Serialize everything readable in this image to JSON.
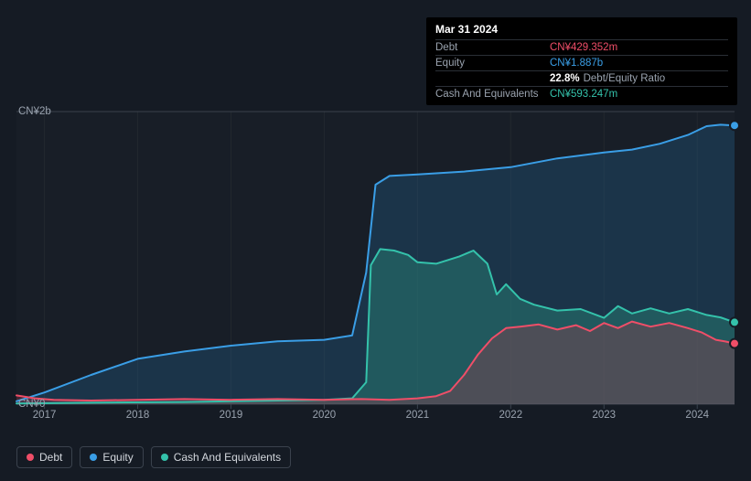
{
  "tooltip": {
    "date": "Mar 31 2024",
    "rows": [
      {
        "label": "Debt",
        "value": "CN¥429.352m",
        "cls": "debt"
      },
      {
        "label": "Equity",
        "value": "CN¥1.887b",
        "cls": "equity"
      },
      {
        "label": "",
        "value_strong": "22.8%",
        "value_label": "Debt/Equity Ratio",
        "cls": "ratio"
      },
      {
        "label": "Cash And Equivalents",
        "value": "CN¥593.247m",
        "cls": "cash"
      }
    ]
  },
  "chart": {
    "type": "area",
    "background_color": "#151b24",
    "plot_bg": "#181e27",
    "grid_color": "#22282f",
    "axis_color": "#3a424d",
    "label_color": "#9aa3af",
    "label_fontsize": 11.5,
    "y_axis": {
      "min": 0,
      "max": 2000,
      "ticks": [
        {
          "v": 0,
          "label": "CN¥0"
        },
        {
          "v": 2000,
          "label": "CN¥2b"
        }
      ]
    },
    "x_axis": {
      "min": 2016.7,
      "max": 2024.4,
      "ticks": [
        2017,
        2018,
        2019,
        2020,
        2021,
        2022,
        2023,
        2024
      ]
    },
    "series": {
      "equity": {
        "label": "Equity",
        "color": "#3a9ee6",
        "fill": "rgba(35,90,130,0.38)",
        "line_width": 2,
        "points": [
          [
            2016.7,
            20
          ],
          [
            2017.0,
            80
          ],
          [
            2017.5,
            200
          ],
          [
            2018.0,
            310
          ],
          [
            2018.5,
            360
          ],
          [
            2019.0,
            400
          ],
          [
            2019.5,
            430
          ],
          [
            2020.0,
            440
          ],
          [
            2020.3,
            470
          ],
          [
            2020.45,
            900
          ],
          [
            2020.55,
            1500
          ],
          [
            2020.7,
            1560
          ],
          [
            2021.0,
            1570
          ],
          [
            2021.5,
            1590
          ],
          [
            2022.0,
            1620
          ],
          [
            2022.5,
            1680
          ],
          [
            2023.0,
            1720
          ],
          [
            2023.3,
            1740
          ],
          [
            2023.6,
            1780
          ],
          [
            2023.9,
            1840
          ],
          [
            2024.1,
            1900
          ],
          [
            2024.25,
            1910
          ],
          [
            2024.4,
            1905
          ]
        ],
        "end_marker": true
      },
      "cash": {
        "label": "Cash And Equivalents",
        "color": "#34c2ab",
        "fill": "rgba(44,140,125,0.42)",
        "line_width": 2,
        "points": [
          [
            2016.7,
            5
          ],
          [
            2017.5,
            10
          ],
          [
            2018.5,
            15
          ],
          [
            2019.5,
            25
          ],
          [
            2020.0,
            30
          ],
          [
            2020.3,
            40
          ],
          [
            2020.45,
            150
          ],
          [
            2020.5,
            950
          ],
          [
            2020.6,
            1060
          ],
          [
            2020.75,
            1050
          ],
          [
            2020.9,
            1020
          ],
          [
            2021.0,
            970
          ],
          [
            2021.2,
            960
          ],
          [
            2021.45,
            1010
          ],
          [
            2021.6,
            1050
          ],
          [
            2021.75,
            960
          ],
          [
            2021.85,
            750
          ],
          [
            2021.95,
            820
          ],
          [
            2022.1,
            720
          ],
          [
            2022.25,
            680
          ],
          [
            2022.5,
            640
          ],
          [
            2022.75,
            650
          ],
          [
            2023.0,
            590
          ],
          [
            2023.15,
            670
          ],
          [
            2023.3,
            620
          ],
          [
            2023.5,
            655
          ],
          [
            2023.7,
            620
          ],
          [
            2023.9,
            650
          ],
          [
            2024.1,
            610
          ],
          [
            2024.25,
            593
          ],
          [
            2024.4,
            560
          ]
        ],
        "end_marker": true
      },
      "debt": {
        "label": "Debt",
        "color": "#ef4e68",
        "fill": "rgba(170,55,75,0.32)",
        "line_width": 2,
        "points": [
          [
            2016.7,
            60
          ],
          [
            2016.9,
            40
          ],
          [
            2017.1,
            30
          ],
          [
            2017.5,
            25
          ],
          [
            2018.0,
            30
          ],
          [
            2018.5,
            35
          ],
          [
            2019.0,
            30
          ],
          [
            2019.5,
            35
          ],
          [
            2020.0,
            30
          ],
          [
            2020.4,
            35
          ],
          [
            2020.7,
            30
          ],
          [
            2021.0,
            40
          ],
          [
            2021.2,
            55
          ],
          [
            2021.35,
            90
          ],
          [
            2021.5,
            200
          ],
          [
            2021.65,
            340
          ],
          [
            2021.8,
            450
          ],
          [
            2021.95,
            520
          ],
          [
            2022.1,
            530
          ],
          [
            2022.3,
            545
          ],
          [
            2022.5,
            510
          ],
          [
            2022.7,
            540
          ],
          [
            2022.85,
            500
          ],
          [
            2023.0,
            555
          ],
          [
            2023.15,
            520
          ],
          [
            2023.3,
            565
          ],
          [
            2023.5,
            530
          ],
          [
            2023.7,
            555
          ],
          [
            2023.9,
            520
          ],
          [
            2024.05,
            490
          ],
          [
            2024.2,
            440
          ],
          [
            2024.3,
            429
          ],
          [
            2024.4,
            415
          ]
        ],
        "end_marker": true
      }
    },
    "legend_order": [
      "debt",
      "equity",
      "cash"
    ]
  }
}
